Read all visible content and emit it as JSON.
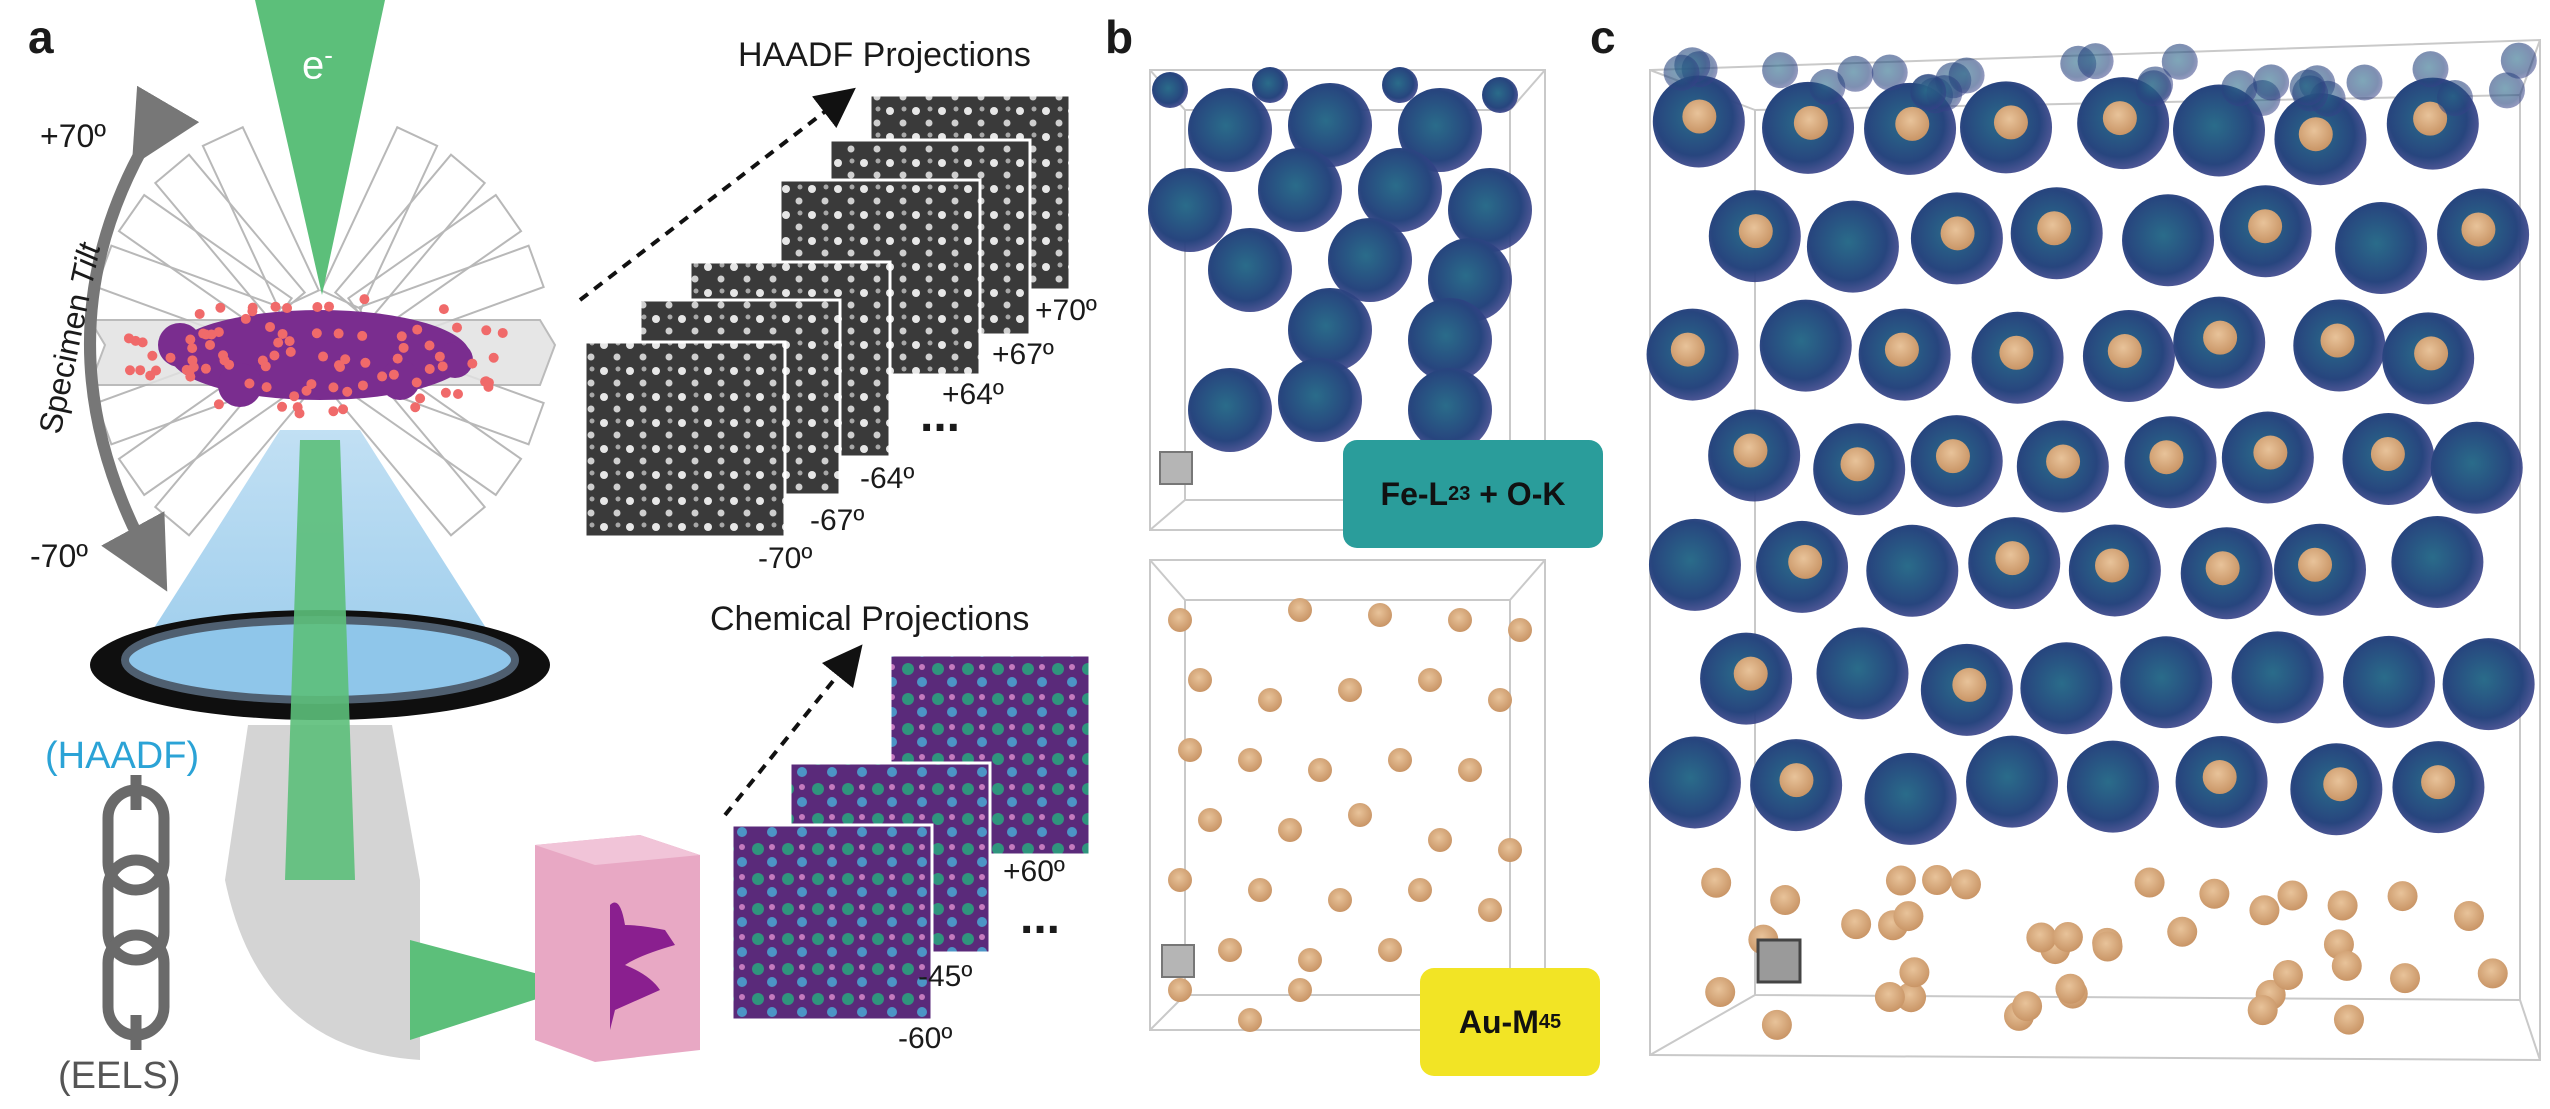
{
  "panel_a": {
    "letter": "a",
    "beam_label": "e",
    "beam_sup": "-",
    "tilt_label_a": "Specimen ",
    "tilt_label_b": "Tilt",
    "tilt_top": "+70º",
    "tilt_bottom": "-70º",
    "haadf_label": "(HAADF)",
    "eels_label": "(EELS)",
    "haadf_title": "HAADF Projections",
    "haadf_angles": [
      "+70º",
      "+67º",
      "+64º",
      "-64º",
      "-67º",
      "-70º"
    ],
    "haadf_ellipsis": "...",
    "chem_title": "Chemical Projections",
    "chem_angles": [
      "+60º",
      "-45º",
      "-60º"
    ],
    "chem_ellipsis": "..."
  },
  "panel_b": {
    "letter": "b",
    "top_badge_main": "Fe-L",
    "top_badge_sub": "23",
    "top_badge_tail": " + O-K",
    "bottom_badge_main": "Au-M",
    "bottom_badge_sub": "45"
  },
  "panel_c": {
    "letter": "c"
  },
  "colors": {
    "beam_green": "#5cbf7a",
    "haadf_blue": "#2ba3d6",
    "detector_blue": "#8fc6ea",
    "iron_oxide": "#2e4f86",
    "gold": "#d9aa7e",
    "teal_badge": "#2a9d9b",
    "yellow_badge": "#f2e425",
    "eels_pink": "#e8a8c4",
    "spectrum_purple": "#8a1f8f"
  }
}
